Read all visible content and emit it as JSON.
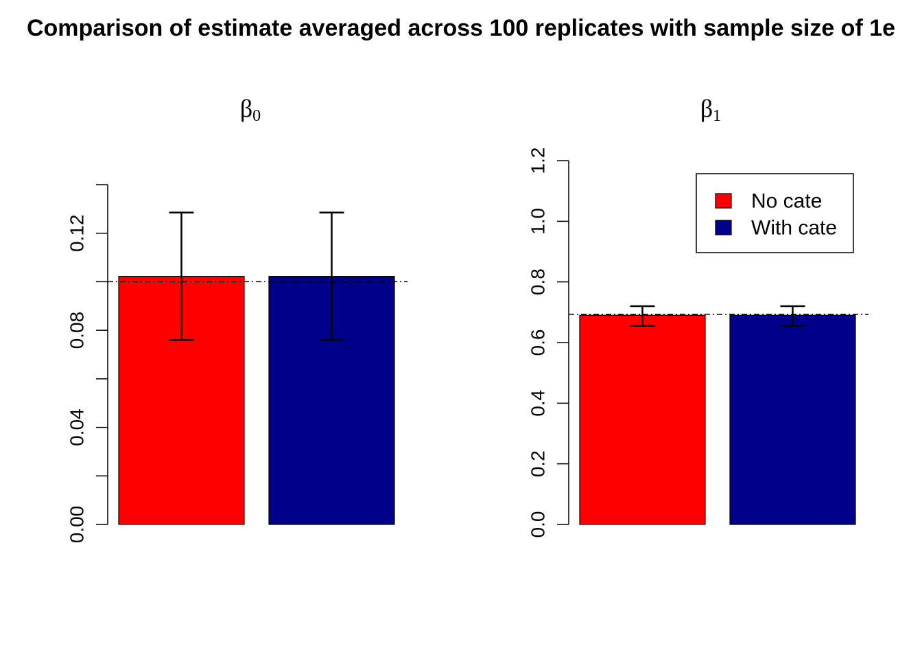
{
  "figure_title": "Comparison of estimate averaged across 100 replicates with sample size of 1e",
  "colors": {
    "no_cate": "#FF0000",
    "with_cate": "#00008B",
    "axis": "#000000"
  },
  "chart_data": [
    {
      "type": "bar",
      "title_symbol": "β",
      "title_subscript": "0",
      "categories": [
        "No cate",
        "With cate"
      ],
      "values": [
        0.1022,
        0.1022
      ],
      "error_low": [
        0.076,
        0.076
      ],
      "error_high": [
        0.1285,
        0.1285
      ],
      "reference_line": 0.1,
      "ylim": [
        0,
        0.14
      ],
      "yticks": [
        0.0,
        0.02,
        0.04,
        0.06,
        0.08,
        0.1,
        0.12,
        0.14
      ],
      "ytick_labels": [
        "0.00",
        "",
        "0.04",
        "",
        "0.08",
        "",
        "0.12",
        ""
      ],
      "legend": false
    },
    {
      "type": "bar",
      "title_symbol": "β",
      "title_subscript": "1",
      "categories": [
        "No cate",
        "With cate"
      ],
      "values": [
        0.69,
        0.69
      ],
      "error_low": [
        0.655,
        0.655
      ],
      "error_high": [
        0.72,
        0.72
      ],
      "reference_line": 0.693,
      "ylim": [
        0,
        1.2
      ],
      "yticks": [
        0.0,
        0.2,
        0.4,
        0.6,
        0.8,
        1.0,
        1.2
      ],
      "ytick_labels": [
        "0.0",
        "0.2",
        "0.4",
        "0.6",
        "0.8",
        "1.0",
        "1.2"
      ],
      "legend": true,
      "legend_position": "top-right",
      "legend_entries": [
        "No cate",
        "With cate"
      ]
    }
  ]
}
